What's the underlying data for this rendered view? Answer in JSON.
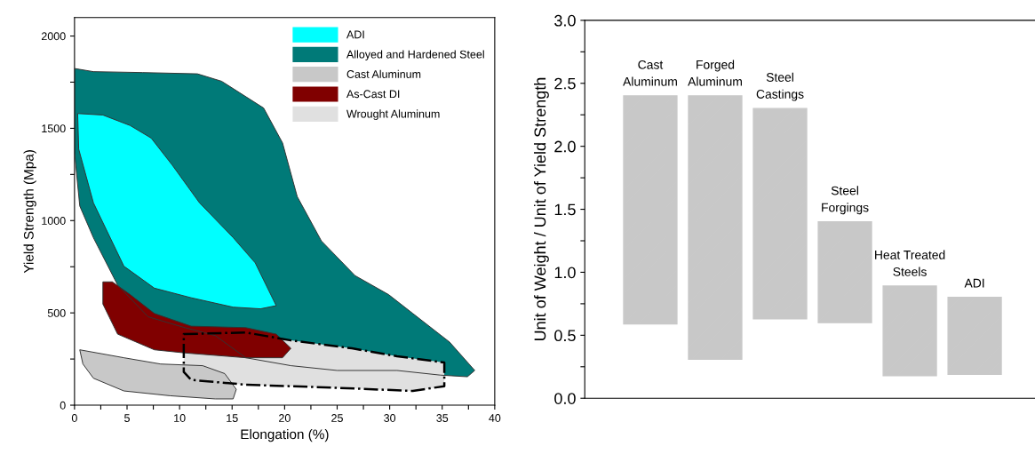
{
  "chart_data": [
    {
      "type": "area",
      "xlabel": "Elongation (%)",
      "ylabel": "Yield Strength (Mpa)",
      "xlim": [
        0,
        40
      ],
      "ylim": [
        0,
        2100
      ],
      "xticks": [
        0,
        {
          "value": 2.5,
          "label": null
        },
        5,
        {
          "value": 7.5,
          "label": null
        },
        10,
        {
          "value": 12.5,
          "label": null
        },
        15,
        {
          "value": 17.5,
          "label": null
        },
        20,
        {
          "value": 22.5,
          "label": null
        },
        25,
        {
          "value": 27.5,
          "label": null
        },
        30,
        {
          "value": 32.5,
          "label": null
        },
        35,
        {
          "value": 37.5,
          "label": null
        },
        40
      ],
      "yticks": [
        0,
        {
          "value": 250,
          "label": null
        },
        500,
        {
          "value": 750,
          "label": null
        },
        1000,
        {
          "value": 1250,
          "label": null
        },
        1500,
        {
          "value": 1750,
          "label": null
        },
        2000
      ],
      "legend": "top right",
      "grid": false,
      "series": [
        {
          "name": "ADI",
          "color": "#00ffff",
          "x": [
            0.3,
            2.7,
            5.3,
            7.3,
            9.3,
            11.9,
            15.1,
            17.2,
            19.2,
            17.7,
            15.1,
            11.1,
            7.6,
            4.7,
            1.8,
            0.4
          ],
          "values": [
            1580,
            1572,
            1515,
            1447,
            1301,
            1096,
            908,
            771,
            539,
            522,
            531,
            582,
            634,
            753,
            1096,
            1387
          ]
        },
        {
          "name": "Alloyed and Hardened Steel",
          "color": "#007a78",
          "x": [
            0,
            1.8,
            6.5,
            11.7,
            14,
            18,
            19.8,
            21.2,
            23.5,
            26.7,
            29.9,
            32.2,
            35.7,
            38.1,
            37.4,
            34.8,
            30.7,
            25,
            20.6,
            16.3,
            13.4,
            10.5,
            7,
            4.1,
            1.8,
            0.5,
            0
          ],
          "values": [
            1824,
            1807,
            1802,
            1795,
            1755,
            1610,
            1421,
            1130,
            890,
            702,
            599,
            497,
            342,
            188,
            154,
            163,
            188,
            188,
            214,
            257,
            377,
            420,
            479,
            651,
            907,
            1079,
            1370
          ]
        },
        {
          "name": "Cast Aluminum",
          "color": "#c8c8c8",
          "x": [
            0.5,
            4.7,
            8.2,
            12.2,
            14.3,
            15.4,
            15.1,
            13.4,
            9.1,
            4.7,
            1.8,
            0.8
          ],
          "values": [
            300,
            257,
            223,
            214,
            171,
            86,
            34,
            34,
            51,
            77,
            146,
            223
          ]
        },
        {
          "name": "As-Cast DI",
          "color": "#800000",
          "x": [
            2.7,
            3.6,
            5.3,
            7.6,
            11.1,
            16.3,
            19.2,
            20.6,
            19.8,
            16.3,
            10.5,
            7.6,
            4.1,
            2.7
          ],
          "values": [
            668,
            668,
            599,
            497,
            428,
            420,
            385,
            308,
            257,
            257,
            283,
            300,
            385,
            548
          ]
        },
        {
          "name": "Wrought Aluminum",
          "color": "#e0e0e0",
          "line_style": "dashdot",
          "x": [
            10.4,
            16.3,
            20.6,
            26.4,
            30.7,
            35.2,
            35.2,
            32.2,
            25,
            16.3,
            11.1,
            10.4
          ],
          "values": [
            385,
            394,
            351,
            308,
            265,
            231,
            103,
            77,
            94,
            111,
            137,
            180
          ]
        }
      ]
    },
    {
      "type": "bar",
      "ylabel": "Unit of Weight / Unit of Yield Strength",
      "ylim": [
        0,
        3.0
      ],
      "yticks": [
        {
          "value": 0,
          "label": "0.0"
        },
        {
          "value": 0.25,
          "label": null
        },
        0.5,
        {
          "value": 0.75,
          "label": null
        },
        {
          "value": 1,
          "label": "1.0"
        },
        {
          "value": 1.25,
          "label": null
        },
        1.5,
        {
          "value": 1.75,
          "label": null
        },
        {
          "value": 2,
          "label": "2.0"
        },
        {
          "value": 2.25,
          "label": null
        },
        2.5,
        {
          "value": 2.75,
          "label": null
        },
        {
          "value": 3,
          "label": "3.0"
        }
      ],
      "tick_labels": "y",
      "grid": false,
      "categories": [
        "Cast\nAluminum",
        "Forged\nAluminum",
        "Steel\nCastings",
        "Steel\nForgings",
        "Heat Treated\nSteels",
        "ADI"
      ],
      "base": [
        0.59,
        0.31,
        0.63,
        0.6,
        0.18,
        0.19
      ],
      "values": [
        1.81,
        2.09,
        1.67,
        0.8,
        0.71,
        0.61
      ],
      "color": "#c8c8c8"
    }
  ]
}
